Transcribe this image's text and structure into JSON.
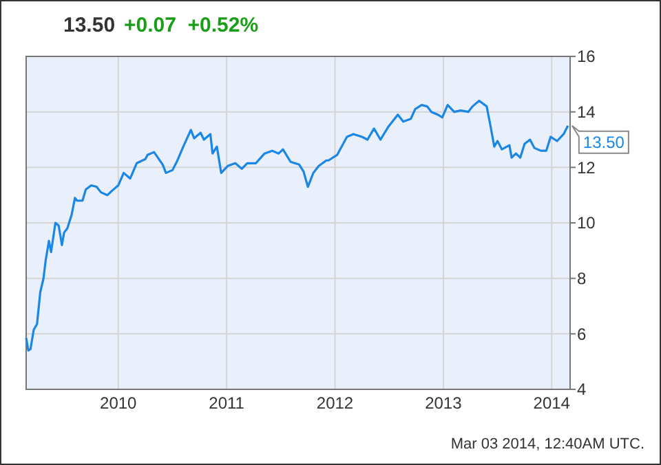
{
  "chart_data": {
    "type": "line",
    "title": "13.50",
    "subtitle": "+0.07  +0.52%",
    "x": [
      2009.15,
      2009.17,
      2009.19,
      2009.22,
      2009.25,
      2009.28,
      2009.31,
      2009.33,
      2009.36,
      2009.38,
      2009.42,
      2009.45,
      2009.48,
      2009.5,
      2009.53,
      2009.57,
      2009.6,
      2009.62,
      2009.67,
      2009.7,
      2009.75,
      2009.8,
      2009.84,
      2009.9,
      2009.94,
      2010.0,
      2010.05,
      2010.11,
      2010.17,
      2010.25,
      2010.27,
      2010.33,
      2010.41,
      2010.44,
      2010.5,
      2010.54,
      2010.6,
      2010.67,
      2010.7,
      2010.76,
      2010.79,
      2010.85,
      2010.87,
      2010.91,
      2010.95,
      2011.01,
      2011.08,
      2011.14,
      2011.19,
      2011.27,
      2011.35,
      2011.42,
      2011.48,
      2011.52,
      2011.59,
      2011.67,
      2011.71,
      2011.75,
      2011.8,
      2011.85,
      2011.92,
      2011.94,
      2012.02,
      2012.11,
      2012.17,
      2012.25,
      2012.3,
      2012.36,
      2012.42,
      2012.49,
      2012.58,
      2012.63,
      2012.7,
      2012.74,
      2012.8,
      2012.85,
      2012.89,
      2012.95,
      2012.99,
      2013.04,
      2013.1,
      2013.16,
      2013.23,
      2013.27,
      2013.33,
      2013.4,
      2013.43,
      2013.47,
      2013.5,
      2013.54,
      2013.61,
      2013.63,
      2013.67,
      2013.71,
      2013.75,
      2013.8,
      2013.84,
      2013.9,
      2013.95,
      2013.99,
      2014.05,
      2014.11,
      2014.15
    ],
    "series": [
      {
        "color": "#1a87e6",
        "values": [
          5.85,
          5.4,
          5.45,
          6.15,
          6.35,
          7.5,
          8.0,
          8.65,
          9.35,
          8.95,
          10.0,
          9.9,
          9.2,
          9.65,
          9.8,
          10.3,
          10.9,
          10.8,
          10.8,
          11.2,
          11.35,
          11.3,
          11.1,
          11.0,
          11.15,
          11.35,
          11.8,
          11.6,
          12.15,
          12.3,
          12.45,
          12.55,
          12.1,
          11.8,
          11.9,
          12.2,
          12.75,
          13.35,
          13.05,
          13.25,
          13.0,
          13.2,
          12.5,
          12.75,
          11.8,
          12.05,
          12.15,
          11.95,
          12.15,
          12.15,
          12.5,
          12.6,
          12.5,
          12.65,
          12.2,
          12.1,
          11.85,
          11.3,
          11.8,
          12.05,
          12.25,
          12.25,
          12.45,
          13.1,
          13.2,
          13.1,
          13.0,
          13.4,
          13.0,
          13.45,
          13.9,
          13.65,
          13.75,
          14.1,
          14.25,
          14.2,
          14.0,
          13.9,
          13.8,
          14.25,
          14.0,
          14.05,
          14.0,
          14.2,
          14.4,
          14.2,
          13.6,
          12.75,
          12.95,
          12.65,
          12.8,
          12.35,
          12.5,
          12.35,
          12.85,
          13.0,
          12.7,
          12.6,
          12.6,
          13.1,
          12.95,
          13.2,
          13.5
        ]
      }
    ],
    "xlim": [
      2009.15,
      2014.17
    ],
    "xticks": [
      2010,
      2011,
      2012,
      2013,
      2014
    ],
    "ylim": [
      4,
      16
    ],
    "yticks": [
      4,
      6,
      8,
      10,
      12,
      14,
      16
    ],
    "grid": true,
    "marker": "none",
    "line_style": "solid",
    "annotations": [
      {
        "text": "13.50",
        "x": 2014.15,
        "y": 13.5
      },
      "Mar 03 2014, 12:40AM UTC."
    ]
  }
}
